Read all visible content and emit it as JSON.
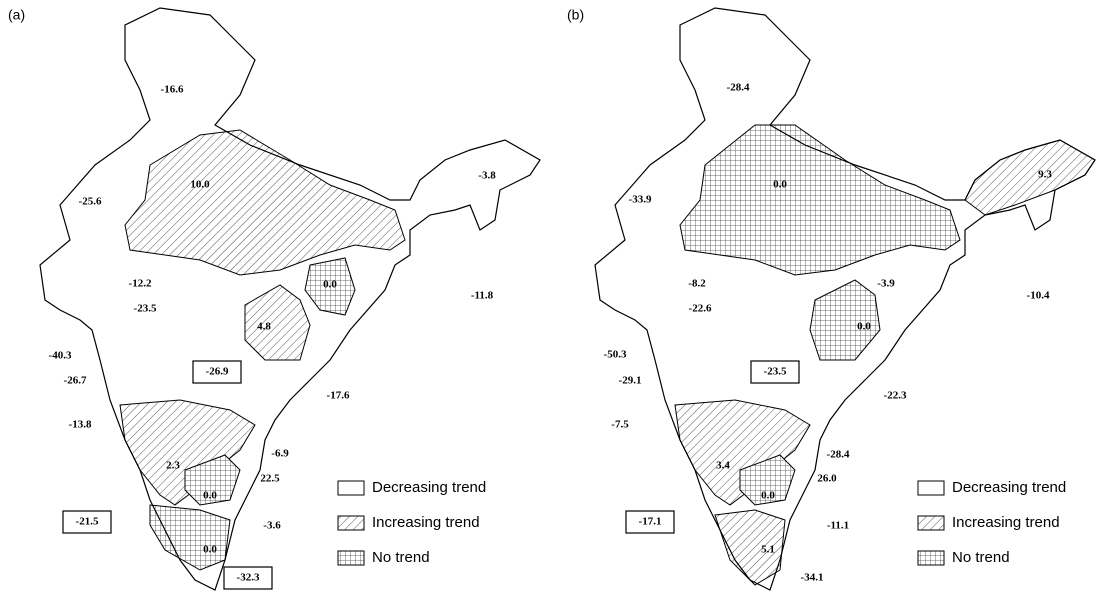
{
  "panels": [
    {
      "panel_label": "(a)",
      "labels": [
        "-16.6",
        "-25.6",
        "10.0",
        "-3.8",
        "-11.8",
        "4.8",
        "0.0",
        "-12.2",
        "-40.3",
        "-23.5",
        "-26.7",
        "-26.9",
        "-17.6",
        "-13.8",
        "-6.9",
        "2.3",
        "22.5",
        "0.0",
        "-21.5",
        "0.0",
        "-3.6",
        "-32.3"
      ],
      "legend": [
        "Decreasing trend",
        "Increasing trend",
        "No trend"
      ]
    },
    {
      "panel_label": "(b)",
      "labels": [
        "-28.4",
        "-33.9",
        "0.0",
        "9.3",
        "-10.4",
        "-8.2",
        "-3.9",
        "0.0",
        "-50.3",
        "-22.6",
        "-29.1",
        "-23.5",
        "-22.3",
        "-7.5",
        "-28.4",
        "3.4",
        "26.0",
        "0.0",
        "-11.1",
        "-17.1",
        "5.1",
        "-34.1"
      ],
      "legend": [
        "Decreasing trend",
        "Increasing trend",
        "No trend"
      ]
    }
  ]
}
